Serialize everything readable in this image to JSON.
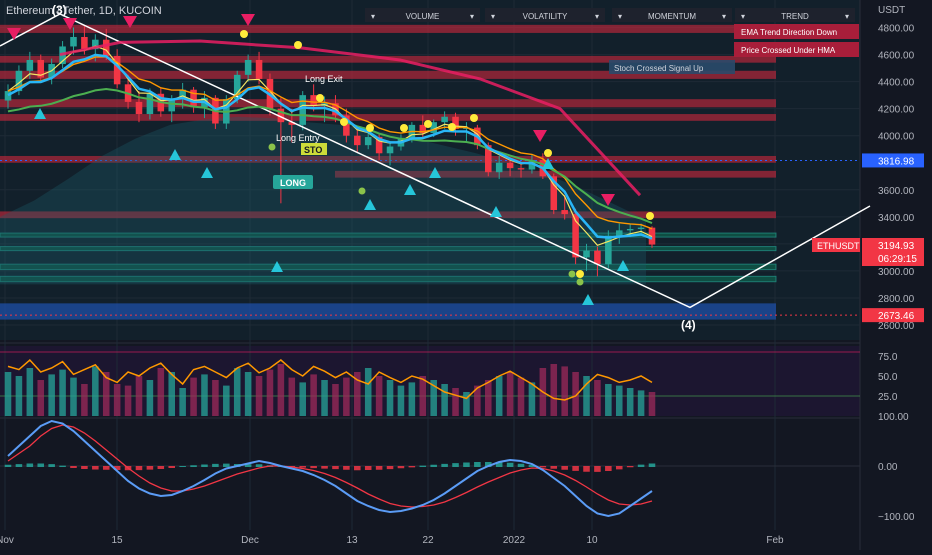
{
  "title": "Ethereum / Tether, 1D, KUCOIN",
  "currency": "USDT",
  "price_ticks": [
    "4800.00",
    "4600.00",
    "4400.00",
    "4200.00",
    "4000.00",
    "3600.00",
    "3400.00",
    "3200.00",
    "3000.00",
    "2800.00",
    "2600.00"
  ],
  "price_tick_values": [
    4800,
    4600,
    4400,
    4200,
    4000,
    3600,
    3400,
    3200,
    3000,
    2800,
    2600
  ],
  "price_labels": {
    "last": {
      "symbol": "ETHUSDT",
      "price": "3194.93",
      "countdown": "06:29:15"
    },
    "line1": "3816.98",
    "line2": "2673.46"
  },
  "x_ticks": [
    "Nov",
    "15",
    "Dec",
    "13",
    "22",
    "2022",
    "10",
    "Feb"
  ],
  "wave_labels": [
    "(3)",
    "(4)"
  ],
  "annotations": {
    "long": "LONG",
    "long_entry": "Long Entry",
    "long_exit": "Long Exit",
    "stop": "STO",
    "stoch": "Stoch Crossed Signal Up",
    "ema_down": "EMA Trend Direction Down",
    "hma_under": "Price Crossed Under HMA"
  },
  "toolbar": [
    "VOLUME",
    "VOLATILITY",
    "MOMENTUM",
    "TREND"
  ],
  "osc1_ticks": [
    "75.0",
    "50.0",
    "25.0"
  ],
  "osc2_ticks": [
    "100.00",
    "0.00",
    "−100.00"
  ],
  "colors": {
    "bg": "#131722",
    "red": "#f23645",
    "teal": "#26a69a",
    "orange": "#ff9800",
    "pink": "#e91e63",
    "white": "#ffffff",
    "blue": "#2962ff"
  },
  "chart_data": {
    "type": "candlestick",
    "title": "Ethereum / Tether, 1D, KUCOIN",
    "ylim": [
      2600,
      4960
    ],
    "candles": [
      [
        4260,
        4380,
        4200,
        4330
      ],
      [
        4330,
        4520,
        4300,
        4480
      ],
      [
        4480,
        4620,
        4420,
        4560
      ],
      [
        4560,
        4600,
        4400,
        4430
      ],
      [
        4430,
        4570,
        4380,
        4530
      ],
      [
        4530,
        4700,
        4500,
        4660
      ],
      [
        4660,
        4800,
        4600,
        4730
      ],
      [
        4730,
        4820,
        4600,
        4640
      ],
      [
        4640,
        4750,
        4550,
        4710
      ],
      [
        4710,
        4790,
        4560,
        4590
      ],
      [
        4590,
        4640,
        4350,
        4380
      ],
      [
        4380,
        4450,
        4200,
        4250
      ],
      [
        4250,
        4330,
        4100,
        4160
      ],
      [
        4160,
        4350,
        4120,
        4310
      ],
      [
        4310,
        4350,
        4140,
        4180
      ],
      [
        4180,
        4300,
        4100,
        4270
      ],
      [
        4270,
        4390,
        4200,
        4340
      ],
      [
        4340,
        4360,
        4170,
        4210
      ],
      [
        4210,
        4330,
        4130,
        4280
      ],
      [
        4280,
        4300,
        4050,
        4090
      ],
      [
        4090,
        4300,
        4050,
        4270
      ],
      [
        4270,
        4480,
        4240,
        4450
      ],
      [
        4450,
        4600,
        4400,
        4560
      ],
      [
        4560,
        4620,
        4380,
        4420
      ],
      [
        4420,
        4460,
        4150,
        4200
      ],
      [
        4200,
        4280,
        3500,
        4100
      ],
      [
        4100,
        4200,
        3950,
        4080
      ],
      [
        4080,
        4330,
        4040,
        4300
      ],
      [
        4300,
        4380,
        4180,
        4220
      ],
      [
        4220,
        4290,
        4100,
        4240
      ],
      [
        4240,
        4300,
        4100,
        4150
      ],
      [
        4150,
        4200,
        3950,
        4000
      ],
      [
        4000,
        4060,
        3880,
        3930
      ],
      [
        3930,
        4030,
        3900,
        3990
      ],
      [
        3990,
        4020,
        3820,
        3870
      ],
      [
        3870,
        3960,
        3780,
        3920
      ],
      [
        3920,
        4010,
        3890,
        3980
      ],
      [
        3980,
        4100,
        3950,
        4080
      ],
      [
        4080,
        4150,
        3990,
        4020
      ],
      [
        4020,
        4120,
        3990,
        4100
      ],
      [
        4100,
        4180,
        4050,
        4140
      ],
      [
        4140,
        4170,
        4000,
        4050
      ],
      [
        4050,
        4100,
        3950,
        4060
      ],
      [
        4060,
        4080,
        3900,
        3930
      ],
      [
        3930,
        3950,
        3700,
        3730
      ],
      [
        3730,
        3850,
        3680,
        3800
      ],
      [
        3800,
        3840,
        3700,
        3760
      ],
      [
        3760,
        3800,
        3690,
        3750
      ],
      [
        3750,
        3860,
        3720,
        3820
      ],
      [
        3820,
        3870,
        3680,
        3700
      ],
      [
        3700,
        3720,
        3420,
        3450
      ],
      [
        3450,
        3560,
        3380,
        3420
      ],
      [
        3420,
        3460,
        3050,
        3100
      ],
      [
        3100,
        3200,
        3000,
        3150
      ],
      [
        3150,
        3180,
        2960,
        3050
      ],
      [
        3050,
        3300,
        3020,
        3260
      ],
      [
        3260,
        3350,
        3200,
        3300
      ],
      [
        3300,
        3350,
        3250,
        3310
      ],
      [
        3310,
        3350,
        3260,
        3320
      ],
      [
        3320,
        3330,
        3170,
        3195
      ]
    ],
    "osc1_range": [
      0,
      85
    ],
    "osc1_line": [
      62,
      58,
      70,
      55,
      60,
      68,
      52,
      58,
      64,
      48,
      42,
      55,
      50,
      60,
      66,
      52,
      40,
      58,
      62,
      55,
      48,
      60,
      66,
      54,
      60,
      70,
      58,
      50,
      62,
      56,
      48,
      55,
      45,
      40,
      55,
      48,
      42,
      50,
      46,
      38,
      30,
      26,
      22,
      35,
      42,
      50,
      56,
      48,
      40,
      30,
      22,
      20,
      25,
      40,
      52,
      48,
      42,
      45,
      50,
      42
    ],
    "osc1_bars": [
      55,
      50,
      60,
      45,
      52,
      58,
      48,
      40,
      62,
      55,
      40,
      38,
      50,
      45,
      60,
      55,
      35,
      48,
      52,
      45,
      38,
      60,
      55,
      50,
      58,
      65,
      48,
      42,
      52,
      45,
      40,
      48,
      55,
      60,
      50,
      45,
      38,
      42,
      50,
      45,
      40,
      35,
      30,
      38,
      45,
      50,
      55,
      48,
      42,
      60,
      65,
      62,
      55,
      50,
      45,
      40,
      38,
      35,
      32,
      30
    ],
    "macd": [
      20,
      40,
      60,
      80,
      90,
      85,
      70,
      50,
      30,
      10,
      -10,
      -30,
      -45,
      -55,
      -60,
      -58,
      -50,
      -40,
      -28,
      -15,
      -5,
      0,
      5,
      10,
      6,
      0,
      -5,
      -10,
      -18,
      -28,
      -40,
      -55,
      -70,
      -80,
      -88,
      -92,
      -90,
      -85,
      -78,
      -68,
      -55,
      -40,
      -25,
      -10,
      0,
      8,
      12,
      10,
      4,
      -8,
      -24,
      -40,
      -60,
      -80,
      -95,
      -100,
      -95,
      -80,
      -65,
      -50
    ],
    "signal": [
      10,
      25,
      40,
      60,
      75,
      82,
      78,
      66,
      50,
      32,
      14,
      -4,
      -20,
      -34,
      -44,
      -50,
      -50,
      -46,
      -40,
      -32,
      -24,
      -16,
      -10,
      -4,
      0,
      0,
      -2,
      -5,
      -9,
      -15,
      -23,
      -33,
      -44,
      -56,
      -66,
      -75,
      -80,
      -82,
      -81,
      -78,
      -72,
      -63,
      -53,
      -42,
      -32,
      -23,
      -14,
      -8,
      -4,
      -5,
      -10,
      -18,
      -29,
      -42,
      -56,
      -68,
      -76,
      -78,
      -76,
      -70
    ]
  }
}
